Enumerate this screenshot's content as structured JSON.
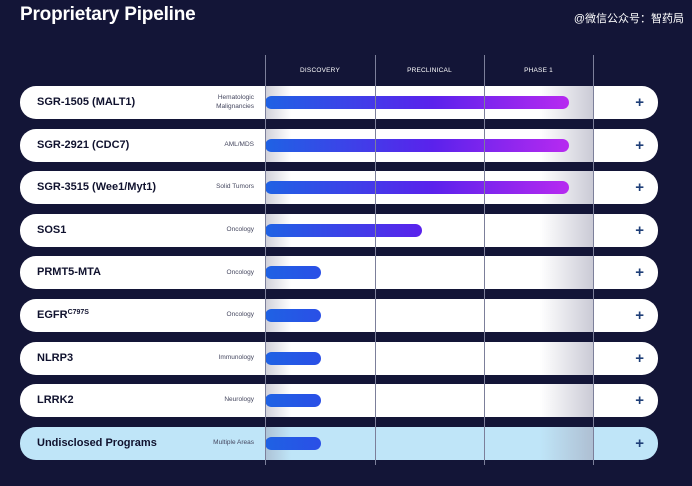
{
  "header": {
    "title": "Proprietary Pipeline",
    "watermark": "@微信公众号：智药局"
  },
  "stages": [
    "DISCOVERY",
    "PRECLINICAL",
    "PHASE 1"
  ],
  "programs": [
    {
      "name": "SGR-1505 (MALT1)",
      "sup": "",
      "area": "Hematologic Malignancies",
      "progress": 0.97,
      "highlight": false
    },
    {
      "name": "SGR-2921 (CDC7)",
      "sup": "",
      "area": "AML/MDS",
      "progress": 0.97,
      "highlight": false
    },
    {
      "name": "SGR-3515 (Wee1/Myt1)",
      "sup": "",
      "area": "Solid Tumors",
      "progress": 0.97,
      "highlight": false
    },
    {
      "name": "SOS1",
      "sup": "",
      "area": "Oncology",
      "progress": 0.5,
      "highlight": false
    },
    {
      "name": "PRMT5-MTA",
      "sup": "",
      "area": "Oncology",
      "progress": 0.18,
      "highlight": false
    },
    {
      "name": "EGFR",
      "sup": "C797S",
      "area": "Oncology",
      "progress": 0.18,
      "highlight": false
    },
    {
      "name": "NLRP3",
      "sup": "",
      "area": "Immunology",
      "progress": 0.18,
      "highlight": false
    },
    {
      "name": "LRRK2",
      "sup": "",
      "area": "Neurology",
      "progress": 0.18,
      "highlight": false
    },
    {
      "name": "Undisclosed Programs",
      "sup": "",
      "area": "Multiple Areas",
      "progress": 0.18,
      "highlight": true
    }
  ],
  "expand_icon": "plus-icon",
  "colors": {
    "background": "#131537",
    "bar_start": "#1f62e4",
    "bar_mid": "#5a22ec",
    "bar_end": "#b72af0",
    "highlight_row": "#bfe5f8",
    "plus": "#1f3f78"
  }
}
